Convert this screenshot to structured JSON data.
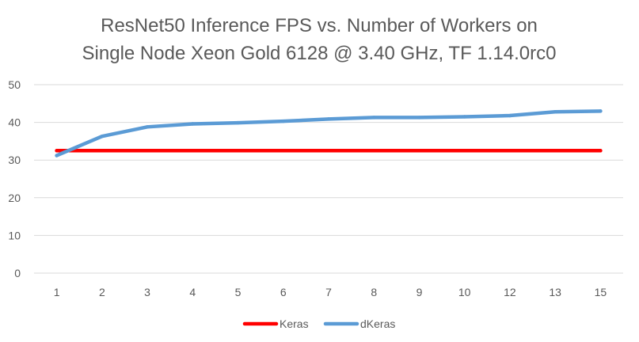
{
  "chart_data": {
    "type": "line",
    "title": [
      "ResNet50 Inference FPS vs. Number of Workers on",
      "Single Node Xeon Gold 6128 @ 3.40 GHz, TF 1.14.0rc0"
    ],
    "categories": [
      "1",
      "2",
      "3",
      "4",
      "5",
      "6",
      "7",
      "8",
      "9",
      "10",
      "12",
      "13",
      "15"
    ],
    "series": [
      {
        "name": "Keras",
        "color": "#ff0000",
        "values": [
          32.5,
          32.5,
          32.5,
          32.5,
          32.5,
          32.5,
          32.5,
          32.5,
          32.5,
          32.5,
          32.5,
          32.5,
          32.5
        ]
      },
      {
        "name": "dKeras",
        "color": "#5b9bd5",
        "values": [
          31.2,
          36.3,
          38.8,
          39.6,
          39.9,
          40.3,
          40.9,
          41.3,
          41.3,
          41.5,
          41.8,
          42.8,
          43.0
        ]
      }
    ],
    "ylim": [
      0,
      50
    ],
    "yticks": [
      0,
      10,
      20,
      30,
      40,
      50
    ],
    "xlabel": "",
    "ylabel": "",
    "grid": true,
    "legend_position": "bottom"
  }
}
